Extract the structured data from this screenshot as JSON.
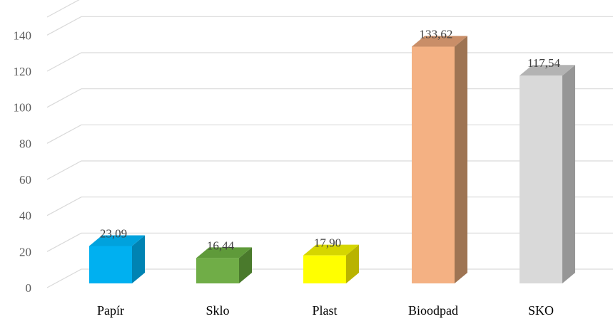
{
  "chart_data": {
    "type": "bar",
    "style": "3d-column",
    "categories": [
      "Papír",
      "Sklo",
      "Plast",
      "Bioodpad",
      "SKO"
    ],
    "values": [
      23.09,
      16.44,
      17.9,
      133.62,
      117.54
    ],
    "data_labels": [
      "23,09",
      "16,44",
      "17,90",
      "133,62",
      "117,54"
    ],
    "y_ticks": [
      "0",
      "20",
      "40",
      "60",
      "80",
      "100",
      "120",
      "140"
    ],
    "ylim": [
      0,
      150
    ],
    "grid": true,
    "legend": "none",
    "colors": [
      {
        "front": "#00b0f0",
        "side": "#0083b3",
        "top": "#00a2dd"
      },
      {
        "front": "#70ad47",
        "side": "#4a7a2c",
        "top": "#5f9a3a"
      },
      {
        "front": "#ffff00",
        "side": "#b9b300",
        "top": "#d6d600"
      },
      {
        "front": "#f4b183",
        "side": "#9e7453",
        "top": "#c98e68"
      },
      {
        "front": "#d9d9d9",
        "side": "#969696",
        "top": "#b3b3b3"
      }
    ]
  }
}
